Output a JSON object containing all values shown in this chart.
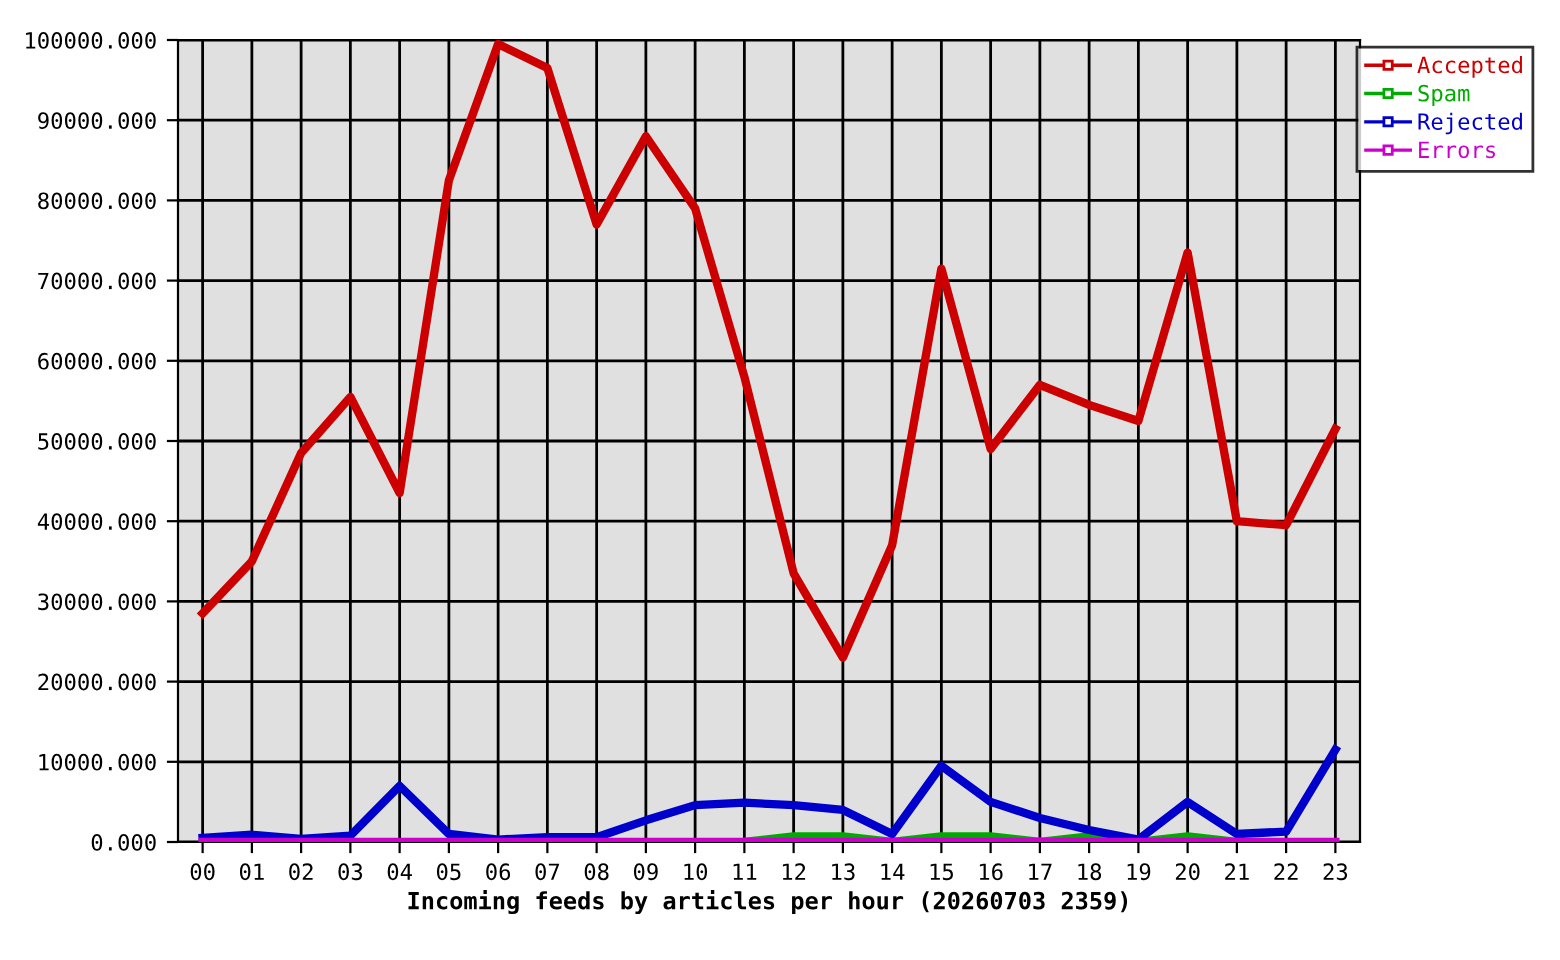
{
  "chart_data": {
    "type": "line",
    "xlabel": "Incoming feeds by articles per hour (20260703 2359)",
    "categories": [
      "00",
      "01",
      "02",
      "03",
      "04",
      "05",
      "06",
      "07",
      "08",
      "09",
      "10",
      "11",
      "12",
      "13",
      "14",
      "15",
      "16",
      "17",
      "18",
      "19",
      "20",
      "21",
      "22",
      "23"
    ],
    "series": [
      {
        "name": "Accepted",
        "color": "#cc0000",
        "values": [
          28500,
          35000,
          48500,
          55500,
          43500,
          82500,
          99500,
          96500,
          77000,
          88000,
          79000,
          58000,
          33500,
          23000,
          37000,
          71500,
          49000,
          57000,
          54500,
          52500,
          73500,
          40000,
          39500,
          51500
        ]
      },
      {
        "name": "Spam",
        "color": "#00aa00",
        "values": [
          null,
          null,
          null,
          null,
          null,
          null,
          null,
          null,
          null,
          null,
          null,
          0,
          700,
          700,
          0,
          700,
          700,
          0,
          700,
          0,
          700,
          0,
          null,
          null
        ]
      },
      {
        "name": "Rejected",
        "color": "#0000cc",
        "values": [
          500,
          900,
          400,
          800,
          7000,
          1000,
          300,
          600,
          600,
          2700,
          4600,
          4900,
          4600,
          4000,
          1000,
          9500,
          5000,
          3000,
          1500,
          300,
          5000,
          1000,
          1300,
          11500
        ]
      },
      {
        "name": "Errors",
        "color": "#cc00cc",
        "values": [
          0,
          0,
          0,
          0,
          0,
          0,
          0,
          0,
          0,
          0,
          0,
          0,
          0,
          0,
          0,
          0,
          0,
          0,
          0,
          0,
          0,
          0,
          0,
          0
        ]
      }
    ],
    "ylim": [
      0,
      100000
    ],
    "yticks": [
      {
        "value": 0,
        "label": "0.000"
      },
      {
        "value": 10000,
        "label": "10000.000"
      },
      {
        "value": 20000,
        "label": "20000.000"
      },
      {
        "value": 30000,
        "label": "30000.000"
      },
      {
        "value": 40000,
        "label": "40000.000"
      },
      {
        "value": 50000,
        "label": "50000.000"
      },
      {
        "value": 60000,
        "label": "60000.000"
      },
      {
        "value": 70000,
        "label": "70000.000"
      },
      {
        "value": 80000,
        "label": "80000.000"
      },
      {
        "value": 90000,
        "label": "90000.000"
      },
      {
        "value": 100000,
        "label": "100000.000"
      }
    ],
    "grid": true,
    "legend": "top right",
    "line_style": "solid"
  }
}
